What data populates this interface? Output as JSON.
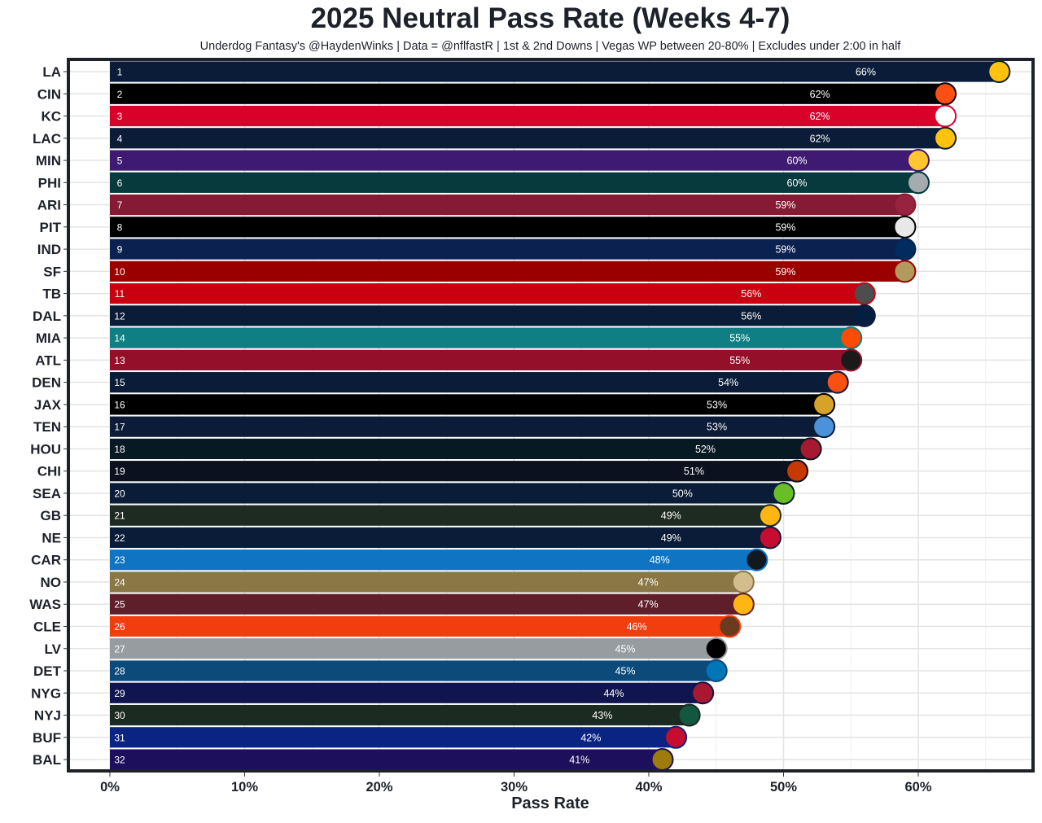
{
  "chart_data": {
    "type": "bar",
    "orientation": "horizontal",
    "title": "2025 Neutral Pass Rate (Weeks 4-7)",
    "subtitle": "Underdog Fantasy's @HaydenWinks | Data = @nflfastR | 1st & 2nd Downs | Vegas WP between 20-80% | Excludes under 2:00 in half",
    "xlabel": "Pass Rate",
    "ylabel": "",
    "xlim": [
      -3,
      68.7
    ],
    "x_ticks": [
      0,
      10,
      20,
      30,
      40,
      50,
      60
    ],
    "x_tick_labels": [
      "0%",
      "10%",
      "20%",
      "30%",
      "40%",
      "50%",
      "60%"
    ],
    "grid": true,
    "bars": [
      {
        "team": "LA",
        "rank": "1",
        "value": 66,
        "label": "66%",
        "color": "#0b1c38",
        "logo_color": "#ffc20e"
      },
      {
        "team": "CIN",
        "rank": "2",
        "value": 62,
        "label": "62%",
        "color": "#000000",
        "logo_color": "#fb4f14"
      },
      {
        "team": "KC",
        "rank": "3",
        "value": 62,
        "label": "62%",
        "color": "#d9002a",
        "logo_color": "#ffffff"
      },
      {
        "team": "LAC",
        "rank": "4",
        "value": 62,
        "label": "62%",
        "color": "#0b1c38",
        "logo_color": "#ffc20e"
      },
      {
        "team": "MIN",
        "rank": "5",
        "value": 60,
        "label": "60%",
        "color": "#3f1a72",
        "logo_color": "#ffc62f"
      },
      {
        "team": "PHI",
        "rank": "6",
        "value": 60,
        "label": "60%",
        "color": "#063a3d",
        "logo_color": "#a5acaf"
      },
      {
        "team": "ARI",
        "rank": "7",
        "value": 59,
        "label": "59%",
        "color": "#861a34",
        "logo_color": "#97233f"
      },
      {
        "team": "PIT",
        "rank": "8",
        "value": 59,
        "label": "59%",
        "color": "#000000",
        "logo_color": "#e8e8e8"
      },
      {
        "team": "IND",
        "rank": "9",
        "value": 59,
        "label": "59%",
        "color": "#0b2150",
        "logo_color": "#002c5f"
      },
      {
        "team": "SF",
        "rank": "10",
        "value": 59,
        "label": "59%",
        "color": "#9b0000",
        "logo_color": "#b3995d"
      },
      {
        "team": "TB",
        "rank": "11",
        "value": 56,
        "label": "56%",
        "color": "#c90010",
        "logo_color": "#4d4d4d"
      },
      {
        "team": "DAL",
        "rank": "12",
        "value": 56,
        "label": "56%",
        "color": "#0b1c38",
        "logo_color": "#041e42"
      },
      {
        "team": "MIA",
        "rank": "14",
        "value": 55,
        "label": "55%",
        "color": "#0f7f84",
        "logo_color": "#fc4c02"
      },
      {
        "team": "ATL",
        "rank": "13",
        "value": 55,
        "label": "55%",
        "color": "#94102a",
        "logo_color": "#1a1a1a"
      },
      {
        "team": "DEN",
        "rank": "15",
        "value": 54,
        "label": "54%",
        "color": "#0b1c38",
        "logo_color": "#fb4f14"
      },
      {
        "team": "JAX",
        "rank": "16",
        "value": 53,
        "label": "53%",
        "color": "#000000",
        "logo_color": "#d7a22a"
      },
      {
        "team": "TEN",
        "rank": "17",
        "value": 53,
        "label": "53%",
        "color": "#0c1c38",
        "logo_color": "#4b92db"
      },
      {
        "team": "HOU",
        "rank": "18",
        "value": 52,
        "label": "52%",
        "color": "#071a24",
        "logo_color": "#a71930"
      },
      {
        "team": "CHI",
        "rank": "19",
        "value": 51,
        "label": "51%",
        "color": "#0c1120",
        "logo_color": "#c83803"
      },
      {
        "team": "SEA",
        "rank": "20",
        "value": 50,
        "label": "50%",
        "color": "#0b1c38",
        "logo_color": "#69be28"
      },
      {
        "team": "GB",
        "rank": "21",
        "value": 49,
        "label": "49%",
        "color": "#1d2b22",
        "logo_color": "#ffb612"
      },
      {
        "team": "NE",
        "rank": "22",
        "value": 49,
        "label": "49%",
        "color": "#0b1c38",
        "logo_color": "#c60c30"
      },
      {
        "team": "CAR",
        "rank": "23",
        "value": 48,
        "label": "48%",
        "color": "#0f74c2",
        "logo_color": "#101820"
      },
      {
        "team": "NO",
        "rank": "24",
        "value": 47,
        "label": "47%",
        "color": "#8b7645",
        "logo_color": "#d3bc8d"
      },
      {
        "team": "WAS",
        "rank": "25",
        "value": 47,
        "label": "47%",
        "color": "#5e1f2a",
        "logo_color": "#ffb612"
      },
      {
        "team": "CLE",
        "rank": "26",
        "value": 46,
        "label": "46%",
        "color": "#f23d0e",
        "logo_color": "#6b3a1f"
      },
      {
        "team": "LV",
        "rank": "27",
        "value": 45,
        "label": "45%",
        "color": "#969c9f",
        "logo_color": "#000000"
      },
      {
        "team": "DET",
        "rank": "28",
        "value": 45,
        "label": "45%",
        "color": "#0b4a79",
        "logo_color": "#0076b6"
      },
      {
        "team": "NYG",
        "rank": "29",
        "value": 44,
        "label": "44%",
        "color": "#11154f",
        "logo_color": "#a71930"
      },
      {
        "team": "NYJ",
        "rank": "30",
        "value": 43,
        "label": "43%",
        "color": "#1c2b22",
        "logo_color": "#125740"
      },
      {
        "team": "BUF",
        "rank": "31",
        "value": 42,
        "label": "42%",
        "color": "#0a2483",
        "logo_color": "#c60c30"
      },
      {
        "team": "BAL",
        "rank": "32",
        "value": 41,
        "label": "41%",
        "color": "#1e0f5c",
        "logo_color": "#9e7c0c"
      }
    ]
  }
}
